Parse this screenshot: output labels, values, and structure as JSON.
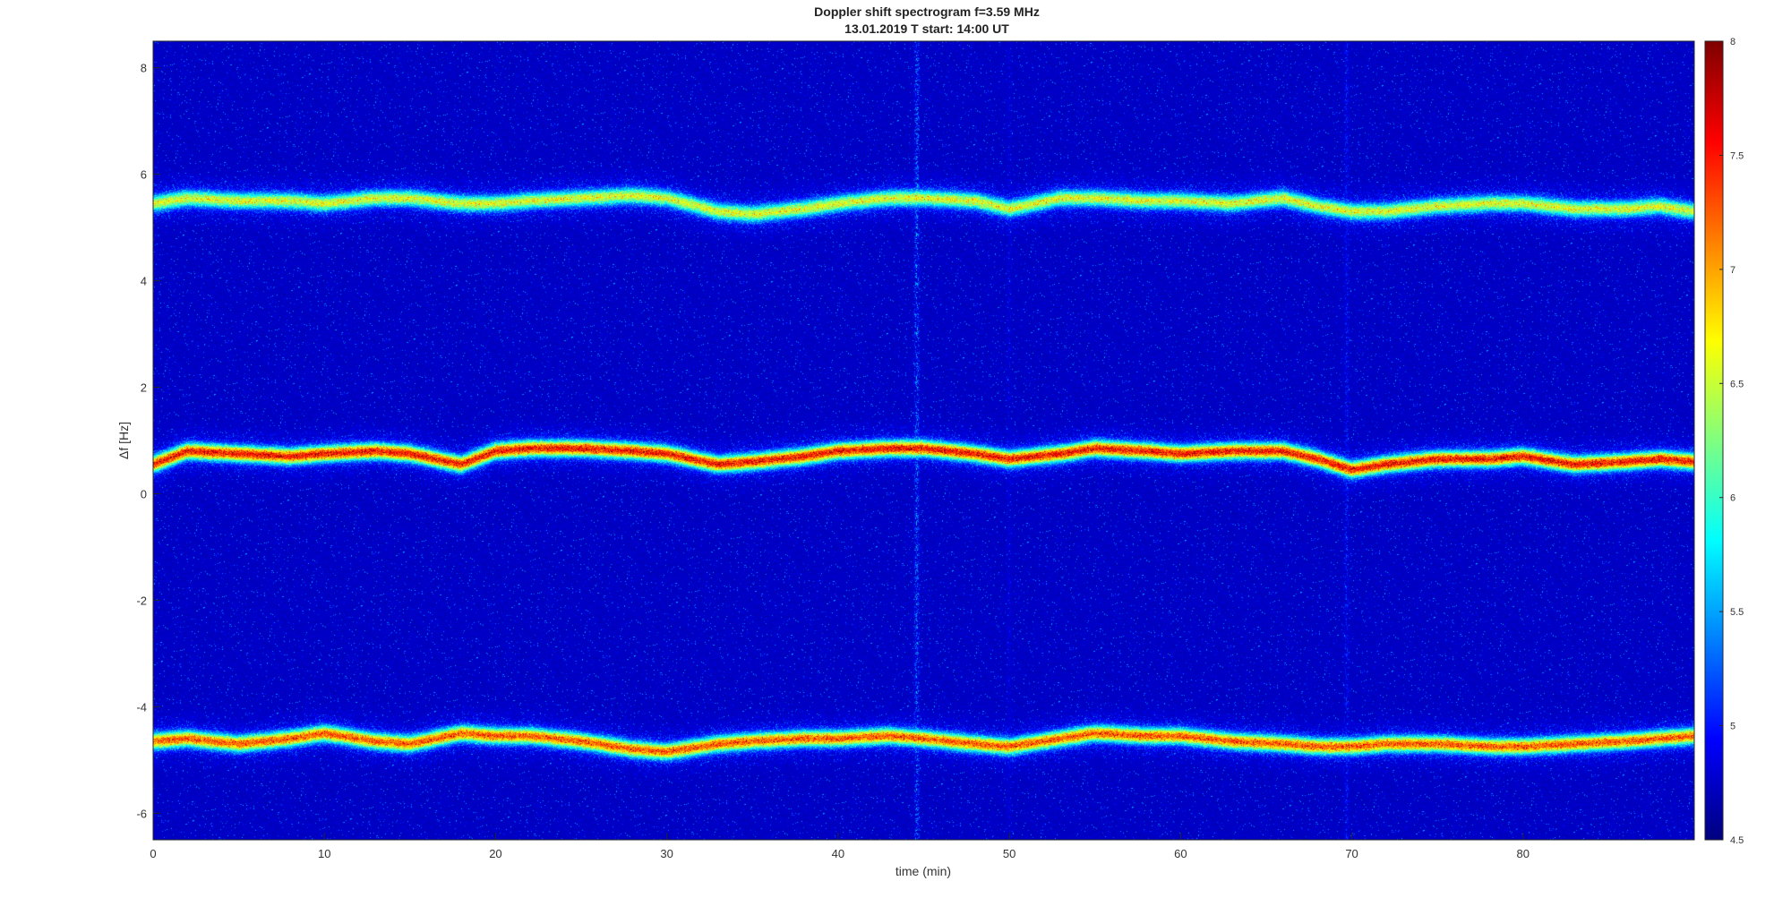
{
  "chart_data": {
    "type": "heatmap",
    "title": "Doppler shift spectrogram f=3.59 MHz",
    "subtitle": "13.01.2019   T start: 14:00 UT",
    "xlabel": "time (min)",
    "ylabel": "Δf [Hz]",
    "xlim": [
      0,
      90
    ],
    "ylim": [
      -6.5,
      8.5
    ],
    "xticks": [
      0,
      10,
      20,
      30,
      40,
      50,
      60,
      70,
      80
    ],
    "yticks": [
      -6,
      -4,
      -2,
      0,
      2,
      4,
      6,
      8
    ],
    "colorbar": {
      "colormap": "jet",
      "range": [
        4.5,
        8
      ],
      "ticks": [
        4.5,
        5,
        5.5,
        6,
        6.5,
        7,
        7.5,
        8
      ]
    },
    "background_value": 4.6,
    "traces": [
      {
        "t": [
          0,
          2,
          5,
          8,
          10,
          13,
          15,
          18,
          20,
          22,
          25,
          28,
          30,
          33,
          35,
          38,
          40,
          43,
          45,
          48,
          50,
          53,
          55,
          58,
          60,
          63,
          66,
          68,
          70,
          72,
          75,
          78,
          80,
          83,
          86,
          88,
          90
        ],
        "df": [
          5.45,
          5.55,
          5.5,
          5.5,
          5.45,
          5.55,
          5.55,
          5.45,
          5.45,
          5.5,
          5.55,
          5.6,
          5.55,
          5.3,
          5.25,
          5.35,
          5.45,
          5.55,
          5.55,
          5.5,
          5.35,
          5.55,
          5.55,
          5.5,
          5.5,
          5.45,
          5.55,
          5.4,
          5.3,
          5.3,
          5.4,
          5.45,
          5.45,
          5.35,
          5.35,
          5.4,
          5.3
        ],
        "peak": 6.6
      },
      {
        "t": [
          0,
          2,
          5,
          8,
          10,
          13,
          15,
          18,
          20,
          22,
          25,
          28,
          30,
          33,
          35,
          38,
          40,
          43,
          45,
          48,
          50,
          53,
          55,
          58,
          60,
          63,
          66,
          68,
          70,
          72,
          75,
          78,
          80,
          83,
          86,
          88,
          90
        ],
        "df": [
          0.55,
          0.8,
          0.75,
          0.7,
          0.75,
          0.8,
          0.75,
          0.55,
          0.8,
          0.85,
          0.85,
          0.8,
          0.75,
          0.55,
          0.6,
          0.7,
          0.8,
          0.85,
          0.85,
          0.75,
          0.65,
          0.75,
          0.85,
          0.8,
          0.75,
          0.8,
          0.8,
          0.65,
          0.45,
          0.55,
          0.65,
          0.65,
          0.7,
          0.55,
          0.6,
          0.65,
          0.6
        ],
        "peak": 7.7
      },
      {
        "t": [
          0,
          2,
          5,
          8,
          10,
          13,
          15,
          18,
          20,
          22,
          25,
          28,
          30,
          33,
          35,
          38,
          40,
          43,
          45,
          48,
          50,
          53,
          55,
          58,
          60,
          63,
          66,
          68,
          70,
          72,
          75,
          78,
          80,
          83,
          86,
          88,
          90
        ],
        "df": [
          -4.65,
          -4.6,
          -4.7,
          -4.6,
          -4.5,
          -4.65,
          -4.7,
          -4.5,
          -4.55,
          -4.55,
          -4.65,
          -4.8,
          -4.85,
          -4.7,
          -4.65,
          -4.6,
          -4.6,
          -4.55,
          -4.6,
          -4.7,
          -4.75,
          -4.6,
          -4.5,
          -4.55,
          -4.55,
          -4.65,
          -4.7,
          -4.75,
          -4.75,
          -4.7,
          -4.7,
          -4.75,
          -4.75,
          -4.7,
          -4.65,
          -4.6,
          -4.55
        ],
        "peak": 7.4
      }
    ],
    "vertical_bands": [
      {
        "t": 44.6,
        "strength": 5.9
      },
      {
        "t": 69.7,
        "strength": 5.3
      },
      {
        "t": 50.0,
        "strength": 5.0
      }
    ]
  }
}
